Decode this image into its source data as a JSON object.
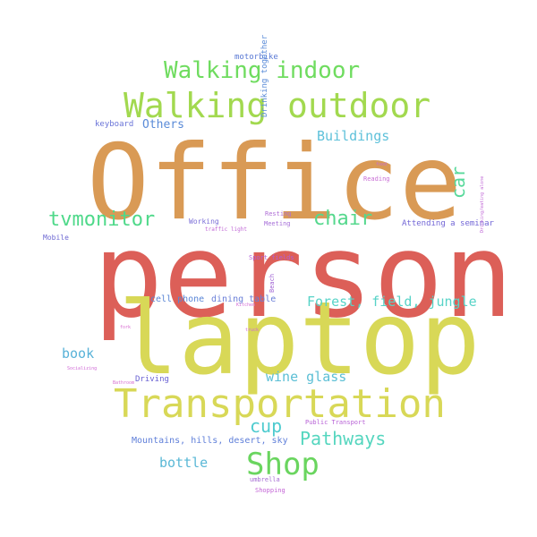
{
  "words": [
    {
      "text": "Office",
      "color": "#d99a55"
    },
    {
      "text": "person",
      "color": "#dc5f58"
    },
    {
      "text": "laptop",
      "color": "#d8d857"
    },
    {
      "text": "Transportation",
      "color": "#d8d857"
    },
    {
      "text": "Walking outdoor",
      "color": "#a2d94f"
    },
    {
      "text": "Walking indoor",
      "color": "#6fdc5f"
    },
    {
      "text": "Shop",
      "color": "#6ad55f"
    },
    {
      "text": "tvmonitor",
      "color": "#4fd98a"
    },
    {
      "text": "chair",
      "color": "#55d88d"
    },
    {
      "text": "car",
      "color": "#58d99b"
    },
    {
      "text": "Pathways",
      "color": "#55d6bf"
    },
    {
      "text": "Forest, field, jungle",
      "color": "#57d3c7"
    },
    {
      "text": "cup",
      "color": "#4ecbcf"
    },
    {
      "text": "Buildings",
      "color": "#5ec1da"
    },
    {
      "text": "wine glass",
      "color": "#5cbfd5"
    },
    {
      "text": "bottle",
      "color": "#5ab8d6"
    },
    {
      "text": "book",
      "color": "#58b2d8"
    },
    {
      "text": "Others",
      "color": "#5a8bd8"
    },
    {
      "text": "cell phone",
      "color": "#5a86d6"
    },
    {
      "text": "dining table",
      "color": "#6a7fd8"
    },
    {
      "text": "Mountains, hills, desert, sky",
      "color": "#5f7fd9"
    },
    {
      "text": "keyboard",
      "color": "#6a74d8"
    },
    {
      "text": "motorbike",
      "color": "#5a79d4"
    },
    {
      "text": "Drinking together",
      "color": "#5a8bd8"
    },
    {
      "text": "Driving",
      "color": "#6a62d3"
    },
    {
      "text": "Mobile",
      "color": "#6f6ad3"
    },
    {
      "text": "Working",
      "color": "#7a6ed7"
    },
    {
      "text": "Attending a seminar",
      "color": "#7266d6"
    },
    {
      "text": "Resting",
      "color": "#b070d6"
    },
    {
      "text": "Meeting",
      "color": "#a770d8"
    },
    {
      "text": "traffic light",
      "color": "#c169d6"
    },
    {
      "text": "Sport fields",
      "color": "#b05fd8"
    },
    {
      "text": "Beach",
      "color": "#a266d4"
    },
    {
      "text": "Reading",
      "color": "#c96fd5"
    },
    {
      "text": "food",
      "color": "#c86fd4"
    },
    {
      "text": "Drinking/eating alone",
      "color": "#c16ad7"
    },
    {
      "text": "Public Transport",
      "color": "#b862d6"
    },
    {
      "text": "umbrella",
      "color": "#a368d2"
    },
    {
      "text": "Shopping",
      "color": "#c363d6"
    },
    {
      "text": "Socializing",
      "color": "#d06ad6"
    },
    {
      "text": "Bathroom",
      "color": "#d56cd0"
    },
    {
      "text": "truck",
      "color": "#cf6ad7"
    },
    {
      "text": "fork",
      "color": "#d76bd1"
    },
    {
      "text": "Kitchen",
      "color": "#d56cd6"
    }
  ]
}
